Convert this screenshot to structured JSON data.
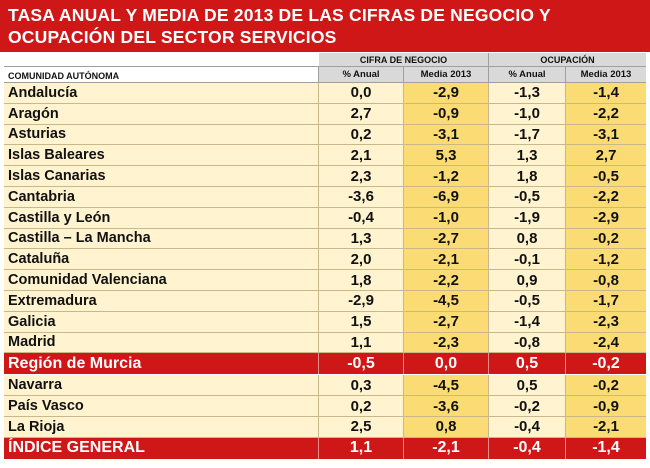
{
  "title": {
    "line1": "TASA ANUAL Y MEDIA DE 2013 DE LAS CIFRAS DE NEGOCIO Y",
    "line2": "OCUPACIÓN DEL SECTOR SERVICIOS"
  },
  "header": {
    "group_cifra": "CIFRA DE NEGOCIO",
    "group_ocupacion": "OCUPACIÓN",
    "col_region": "COMUNIDAD AUTÓNOMA",
    "col_anual_1": "% Anual",
    "col_media_1": "Media 2013",
    "col_anual_2": "% Anual",
    "col_media_2": "Media 2013"
  },
  "rows": [
    {
      "name": "Andalucía",
      "cifra_anual": "0,0",
      "cifra_media": "-2,9",
      "ocup_anual": "-1,3",
      "ocup_media": "-1,4"
    },
    {
      "name": "Aragón",
      "cifra_anual": "2,7",
      "cifra_media": "-0,9",
      "ocup_anual": "-1,0",
      "ocup_media": "-2,2"
    },
    {
      "name": "Asturias",
      "cifra_anual": "0,2",
      "cifra_media": "-3,1",
      "ocup_anual": "-1,7",
      "ocup_media": "-3,1"
    },
    {
      "name": "Islas Baleares",
      "cifra_anual": "2,1",
      "cifra_media": "5,3",
      "ocup_anual": "1,3",
      "ocup_media": "2,7"
    },
    {
      "name": "Islas Canarias",
      "cifra_anual": "2,3",
      "cifra_media": "-1,2",
      "ocup_anual": "1,8",
      "ocup_media": "-0,5"
    },
    {
      "name": "Cantabria",
      "cifra_anual": "-3,6",
      "cifra_media": "-6,9",
      "ocup_anual": "-0,5",
      "ocup_media": "-2,2"
    },
    {
      "name": "Castilla y León",
      "cifra_anual": "-0,4",
      "cifra_media": "-1,0",
      "ocup_anual": "-1,9",
      "ocup_media": "-2,9"
    },
    {
      "name": "Castilla – La Mancha",
      "cifra_anual": "1,3",
      "cifra_media": "-2,7",
      "ocup_anual": "0,8",
      "ocup_media": "-0,2"
    },
    {
      "name": "Cataluña",
      "cifra_anual": "2,0",
      "cifra_media": "-2,1",
      "ocup_anual": "-0,1",
      "ocup_media": "-1,2"
    },
    {
      "name": "Comunidad Valenciana",
      "cifra_anual": "1,8",
      "cifra_media": "-2,2",
      "ocup_anual": "0,9",
      "ocup_media": "-0,8"
    },
    {
      "name": "Extremadura",
      "cifra_anual": "-2,9",
      "cifra_media": "-4,5",
      "ocup_anual": "-0,5",
      "ocup_media": "-1,7"
    },
    {
      "name": "Galicia",
      "cifra_anual": "1,5",
      "cifra_media": "-2,7",
      "ocup_anual": "-1,4",
      "ocup_media": "-2,3"
    },
    {
      "name": "Madrid",
      "cifra_anual": "1,1",
      "cifra_media": "-2,3",
      "ocup_anual": "-0,8",
      "ocup_media": "-2,4"
    },
    {
      "name": "Región de Murcia",
      "cifra_anual": "-0,5",
      "cifra_media": "0,0",
      "ocup_anual": "0,5",
      "ocup_media": "-0,2",
      "highlight": true
    },
    {
      "name": "Navarra",
      "cifra_anual": "0,3",
      "cifra_media": "-4,5",
      "ocup_anual": "0,5",
      "ocup_media": "-0,2"
    },
    {
      "name": "País Vasco",
      "cifra_anual": "0,2",
      "cifra_media": "-3,6",
      "ocup_anual": "-0,2",
      "ocup_media": "-0,9"
    },
    {
      "name": "La Rioja",
      "cifra_anual": "2,5",
      "cifra_media": "0,8",
      "ocup_anual": "-0,4",
      "ocup_media": "-2,1"
    },
    {
      "name": "ÍNDICE GENERAL",
      "cifra_anual": "1,1",
      "cifra_media": "-2,1",
      "ocup_anual": "-0,4",
      "ocup_media": "-1,4",
      "highlight": true
    }
  ],
  "colors": {
    "red": "#cf1717",
    "cream": "#fff4cf",
    "gold": "#fbdc74",
    "header_grey": "#d9d9d9"
  }
}
